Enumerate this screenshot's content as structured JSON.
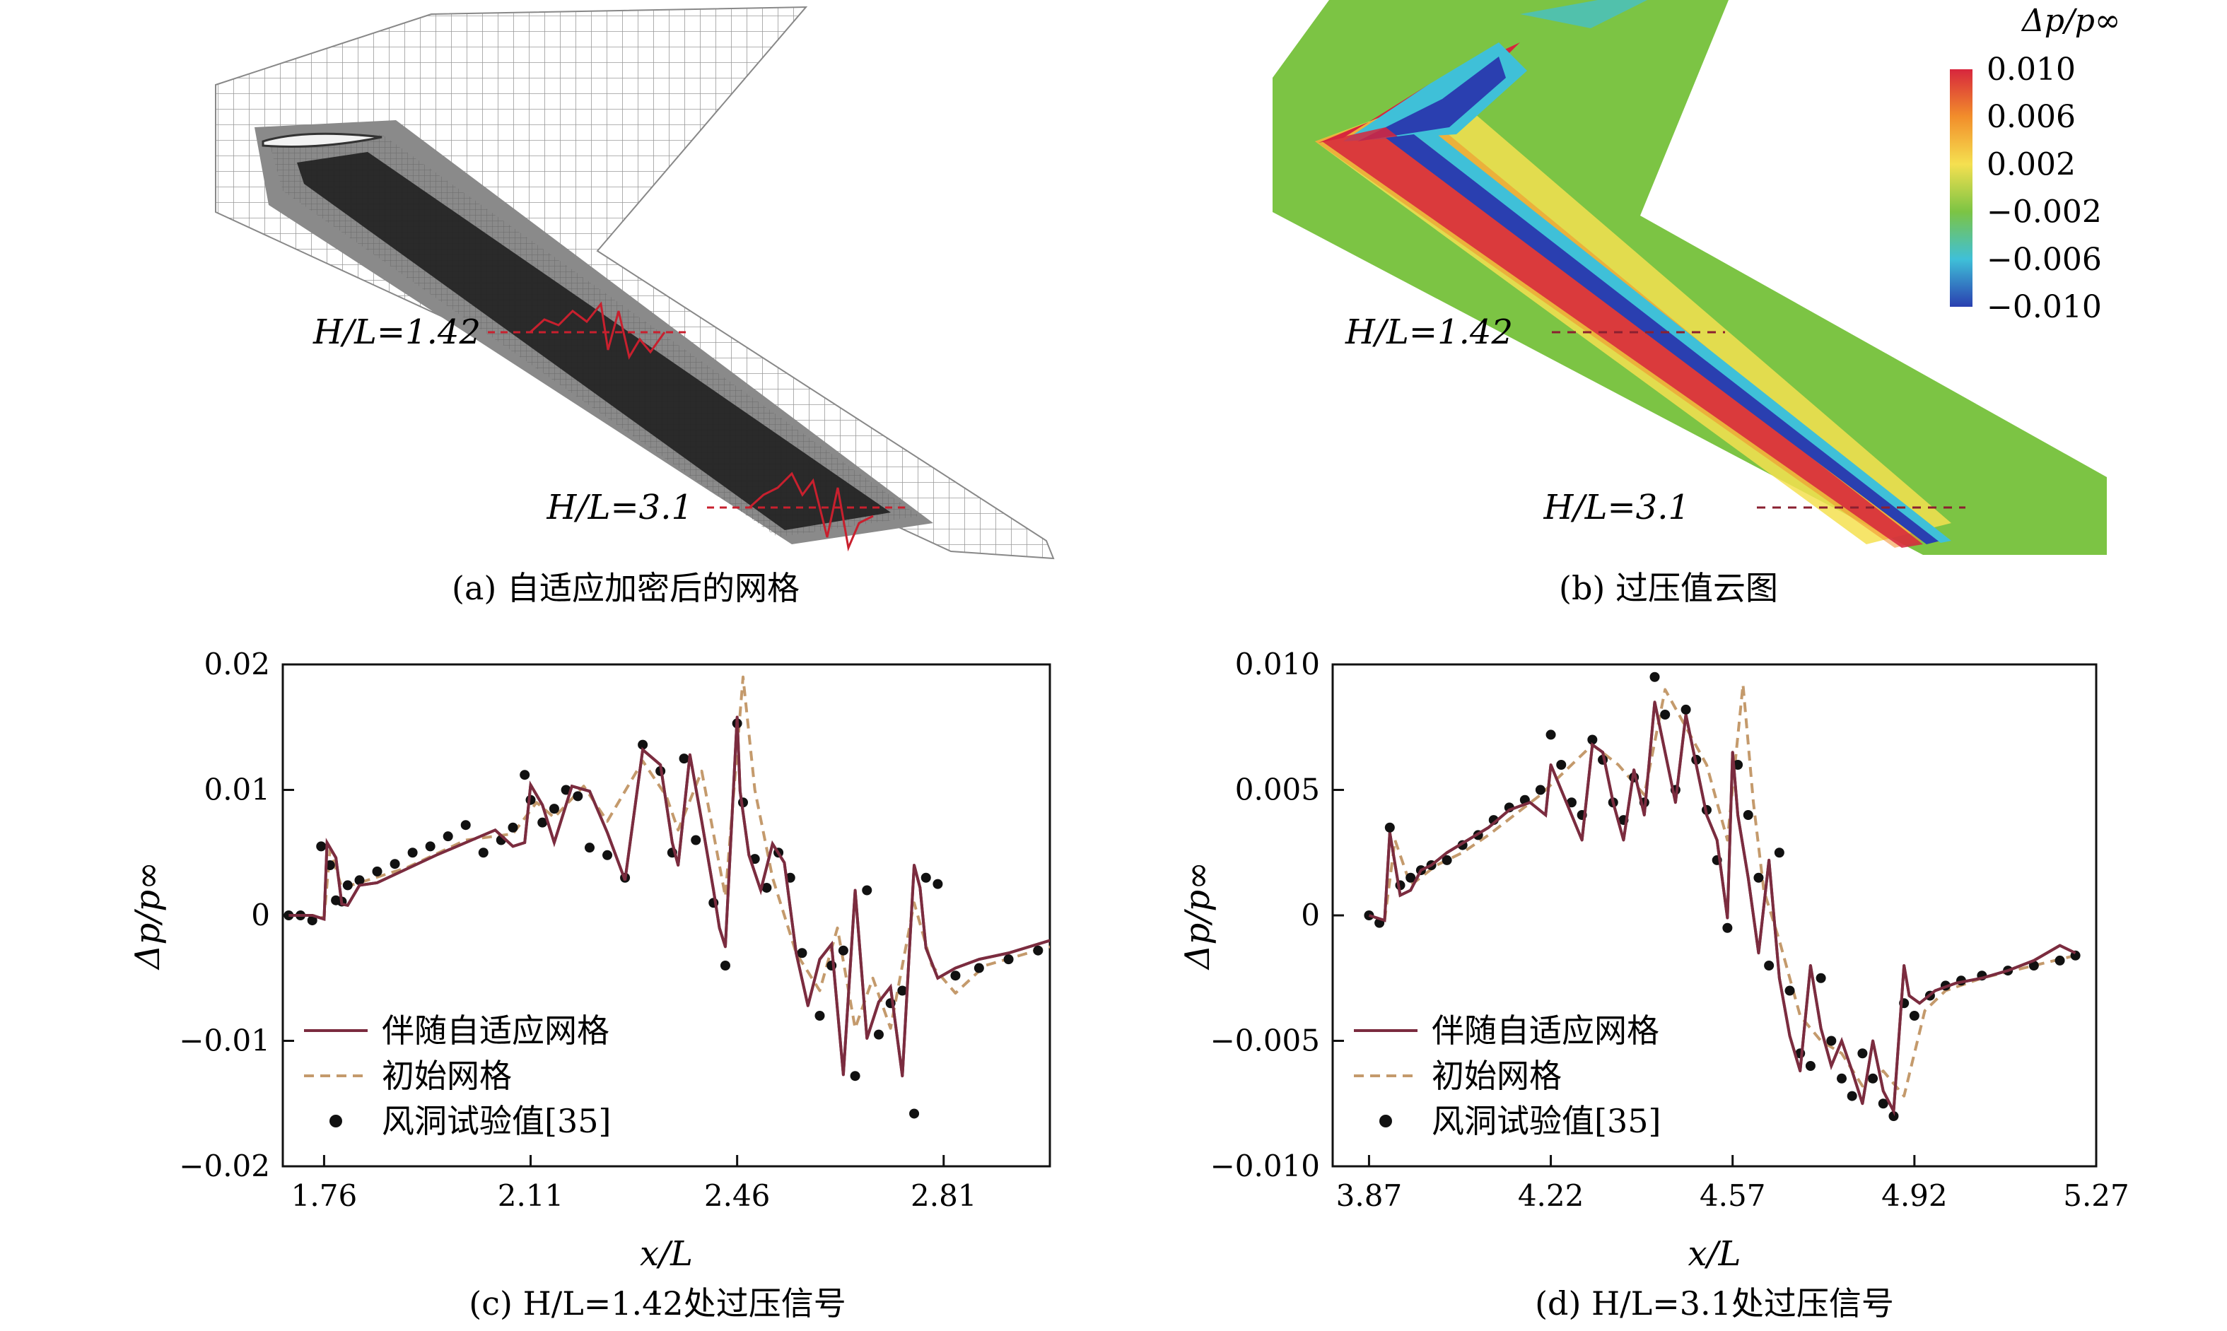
{
  "panels": {
    "a": {
      "caption": "(a) 自适应加密后的网格",
      "label_1": "H/L=1.42",
      "label_2": "H/L=3.1"
    },
    "b": {
      "caption": "(b) 过压值云图",
      "label_1": "H/L=1.42",
      "label_2": "H/L=3.1",
      "colorbar_title": "Δp/p∞",
      "colorbar_ticks": [
        "0.010",
        "0.006",
        "0.002",
        "−0.002",
        "−0.006",
        "−0.010"
      ],
      "colorbar_colors": [
        "#d7263d",
        "#f28e2b",
        "#f5e050",
        "#7cc444",
        "#3fc0d8",
        "#2a3fb0"
      ]
    }
  },
  "chart_data": [
    {
      "type": "line",
      "panel": "c",
      "caption": "(c) H/L=1.42处过压信号",
      "xlabel": "x/L",
      "ylabel": "Δp/p∞",
      "xlim": [
        1.69,
        2.99
      ],
      "ylim": [
        -0.02,
        0.02
      ],
      "xticks": [
        "1.76",
        "2.11",
        "2.46",
        "2.81"
      ],
      "yticks": [
        "0.02",
        "0.01",
        "0",
        "−0.01",
        "−0.02"
      ],
      "legend": [
        "伴随自适应网格",
        "初始网格",
        "风洞试验值[35]"
      ],
      "series": [
        {
          "name": "伴随自适应网格",
          "color": "#7b2c3f",
          "x": [
            1.7,
            1.74,
            1.76,
            1.765,
            1.78,
            1.79,
            1.8,
            1.82,
            1.85,
            1.9,
            1.95,
            2.0,
            2.05,
            2.08,
            2.1,
            2.11,
            2.13,
            2.15,
            2.18,
            2.21,
            2.24,
            2.27,
            2.3,
            2.33,
            2.35,
            2.36,
            2.38,
            2.4,
            2.42,
            2.43,
            2.44,
            2.46,
            2.465,
            2.48,
            2.5,
            2.52,
            2.54,
            2.56,
            2.58,
            2.6,
            2.62,
            2.64,
            2.66,
            2.68,
            2.7,
            2.72,
            2.74,
            2.76,
            2.77,
            2.78,
            2.8,
            2.83,
            2.87,
            2.92,
            2.99
          ],
          "y": [
            0,
            0,
            -0.0003,
            0.0058,
            0.0046,
            0.0009,
            0.0008,
            0.0024,
            0.0026,
            0.0037,
            0.0048,
            0.0058,
            0.0068,
            0.0055,
            0.0058,
            0.0104,
            0.0088,
            0.0058,
            0.0103,
            0.0099,
            0.0066,
            0.0028,
            0.0132,
            0.012,
            0.0058,
            0.004,
            0.0128,
            0.0075,
            0.002,
            -0.001,
            -0.0025,
            0.0158,
            0.0099,
            0.0048,
            0.002,
            0.0057,
            0.0042,
            -0.003,
            -0.0072,
            -0.0035,
            -0.0023,
            -0.0127,
            0.002,
            -0.0098,
            -0.0069,
            -0.0057,
            -0.0128,
            0.004,
            0.0022,
            -0.0026,
            -0.005,
            -0.0042,
            -0.0035,
            -0.003,
            -0.002
          ]
        },
        {
          "name": "初始网格",
          "color": "#c49a6c",
          "x": [
            1.7,
            1.74,
            1.76,
            1.77,
            1.79,
            1.82,
            1.9,
            2.0,
            2.08,
            2.12,
            2.15,
            2.2,
            2.24,
            2.3,
            2.34,
            2.36,
            2.4,
            2.44,
            2.47,
            2.49,
            2.52,
            2.56,
            2.6,
            2.63,
            2.66,
            2.69,
            2.72,
            2.76,
            2.79,
            2.83,
            2.88,
            2.99
          ],
          "y": [
            0,
            0,
            -0.0002,
            0.0052,
            0.0022,
            0.0026,
            0.0038,
            0.006,
            0.0065,
            0.009,
            0.0078,
            0.0103,
            0.0075,
            0.0123,
            0.0095,
            0.0068,
            0.0115,
            0.0015,
            0.019,
            0.01,
            0.003,
            -0.003,
            -0.006,
            -0.001,
            -0.009,
            -0.005,
            -0.009,
            0.001,
            -0.004,
            -0.0062,
            -0.004,
            -0.0025
          ]
        },
        {
          "name": "风洞试验值[35]",
          "color": "#111111",
          "mode": "markers",
          "x": [
            1.7,
            1.72,
            1.74,
            1.755,
            1.77,
            1.78,
            1.79,
            1.8,
            1.82,
            1.85,
            1.88,
            1.91,
            1.94,
            1.97,
            2.0,
            2.03,
            2.06,
            2.08,
            2.1,
            2.11,
            2.13,
            2.15,
            2.17,
            2.19,
            2.21,
            2.24,
            2.27,
            2.3,
            2.33,
            2.35,
            2.37,
            2.39,
            2.42,
            2.44,
            2.46,
            2.47,
            2.49,
            2.51,
            2.53,
            2.55,
            2.57,
            2.6,
            2.62,
            2.64,
            2.66,
            2.68,
            2.7,
            2.72,
            2.74,
            2.76,
            2.78,
            2.8,
            2.83,
            2.87,
            2.92,
            2.97
          ],
          "y": [
            0,
            0,
            -0.0004,
            0.0055,
            0.004,
            0.0012,
            0.0011,
            0.0024,
            0.0028,
            0.0035,
            0.0041,
            0.005,
            0.0055,
            0.0063,
            0.0072,
            0.005,
            0.006,
            0.007,
            0.0112,
            0.0092,
            0.0074,
            0.0085,
            0.01,
            0.0095,
            0.0054,
            0.0048,
            0.003,
            0.0136,
            0.0115,
            0.005,
            0.0125,
            0.006,
            0.001,
            -0.004,
            0.0153,
            0.009,
            0.0045,
            0.0022,
            0.005,
            0.003,
            -0.003,
            -0.008,
            -0.004,
            -0.0028,
            -0.0128,
            0.002,
            -0.0095,
            -0.007,
            -0.006,
            -0.0158,
            0.003,
            0.0025,
            -0.0048,
            -0.0042,
            -0.0035,
            -0.0028
          ]
        }
      ]
    },
    {
      "type": "line",
      "panel": "d",
      "caption": "(d) H/L=3.1处过压信号",
      "xlabel": "x/L",
      "ylabel": "Δp/p∞",
      "xlim": [
        3.8,
        5.27
      ],
      "ylim": [
        -0.01,
        0.01
      ],
      "xticks": [
        "3.87",
        "4.22",
        "4.57",
        "4.92",
        "5.27"
      ],
      "yticks": [
        "0.010",
        "0.005",
        "0",
        "−0.005",
        "−0.010"
      ],
      "legend": [
        "伴随自适应网格",
        "初始网格",
        "风洞试验值[35]"
      ],
      "series": [
        {
          "name": "伴随自适应网格",
          "color": "#7b2c3f",
          "x": [
            3.87,
            3.9,
            3.91,
            3.93,
            3.95,
            3.97,
            3.99,
            4.02,
            4.06,
            4.1,
            4.14,
            4.18,
            4.21,
            4.22,
            4.24,
            4.26,
            4.28,
            4.3,
            4.32,
            4.34,
            4.36,
            4.38,
            4.4,
            4.42,
            4.44,
            4.46,
            4.48,
            4.5,
            4.52,
            4.54,
            4.56,
            4.57,
            4.58,
            4.6,
            4.62,
            4.64,
            4.66,
            4.68,
            4.7,
            4.72,
            4.74,
            4.76,
            4.78,
            4.8,
            4.82,
            4.84,
            4.86,
            4.88,
            4.9,
            4.91,
            4.93,
            4.96,
            5.0,
            5.05,
            5.1,
            5.15,
            5.2,
            5.23
          ],
          "y": [
            0,
            -0.0002,
            0.0033,
            0.0008,
            0.001,
            0.0018,
            0.002,
            0.0025,
            0.003,
            0.0035,
            0.0042,
            0.0045,
            0.004,
            0.006,
            0.005,
            0.004,
            0.003,
            0.0068,
            0.0065,
            0.0045,
            0.003,
            0.0058,
            0.004,
            0.0085,
            0.0065,
            0.0045,
            0.008,
            0.006,
            0.004,
            0.003,
            -0.0001,
            0.0065,
            0.004,
            0.0015,
            -0.0015,
            0.0022,
            -0.0025,
            -0.0048,
            -0.0062,
            -0.002,
            -0.0045,
            -0.006,
            -0.005,
            -0.0062,
            -0.0075,
            -0.005,
            -0.007,
            -0.0078,
            -0.002,
            -0.0032,
            -0.0035,
            -0.003,
            -0.0027,
            -0.0025,
            -0.0022,
            -0.0018,
            -0.0012,
            -0.0015
          ]
        },
        {
          "name": "初始网格",
          "color": "#c49a6c",
          "x": [
            3.87,
            3.9,
            3.92,
            3.95,
            4.0,
            4.05,
            4.1,
            4.15,
            4.2,
            4.25,
            4.3,
            4.35,
            4.4,
            4.44,
            4.48,
            4.52,
            4.56,
            4.59,
            4.61,
            4.63,
            4.66,
            4.7,
            4.74,
            4.78,
            4.82,
            4.86,
            4.9,
            4.94,
            4.98,
            5.05,
            5.15,
            5.23
          ],
          "y": [
            0,
            -0.0002,
            0.003,
            0.0012,
            0.002,
            0.0025,
            0.0032,
            0.004,
            0.0048,
            0.0058,
            0.0068,
            0.006,
            0.0048,
            0.009,
            0.0075,
            0.006,
            0.003,
            0.0092,
            0.0045,
            0.001,
            -0.001,
            -0.004,
            -0.005,
            -0.0055,
            -0.0068,
            -0.0062,
            -0.0072,
            -0.0038,
            -0.003,
            -0.0025,
            -0.002,
            -0.0016
          ]
        },
        {
          "name": "风洞试验值[35]",
          "color": "#111111",
          "mode": "markers",
          "x": [
            3.87,
            3.89,
            3.91,
            3.93,
            3.95,
            3.97,
            3.99,
            4.02,
            4.05,
            4.08,
            4.11,
            4.14,
            4.17,
            4.2,
            4.22,
            4.24,
            4.26,
            4.28,
            4.3,
            4.32,
            4.34,
            4.36,
            4.38,
            4.4,
            4.42,
            4.44,
            4.46,
            4.48,
            4.5,
            4.52,
            4.54,
            4.56,
            4.58,
            4.6,
            4.62,
            4.64,
            4.66,
            4.68,
            4.7,
            4.72,
            4.74,
            4.76,
            4.78,
            4.8,
            4.82,
            4.84,
            4.86,
            4.88,
            4.9,
            4.92,
            4.95,
            4.98,
            5.01,
            5.05,
            5.1,
            5.15,
            5.2,
            5.23
          ],
          "y": [
            0,
            -0.0003,
            0.0035,
            0.0012,
            0.0015,
            0.0018,
            0.002,
            0.0022,
            0.0028,
            0.0032,
            0.0038,
            0.0043,
            0.0046,
            0.005,
            0.0072,
            0.006,
            0.0045,
            0.004,
            0.007,
            0.0062,
            0.0045,
            0.0038,
            0.0055,
            0.0045,
            0.0095,
            0.008,
            0.005,
            0.0082,
            0.0062,
            0.0042,
            0.0022,
            -0.0005,
            0.006,
            0.004,
            0.0015,
            -0.002,
            0.0025,
            -0.003,
            -0.0055,
            -0.006,
            -0.0025,
            -0.005,
            -0.0065,
            -0.0072,
            -0.0055,
            -0.0065,
            -0.0075,
            -0.008,
            -0.0035,
            -0.004,
            -0.0032,
            -0.0028,
            -0.0026,
            -0.0024,
            -0.0022,
            -0.002,
            -0.0018,
            -0.0016
          ]
        }
      ]
    }
  ]
}
